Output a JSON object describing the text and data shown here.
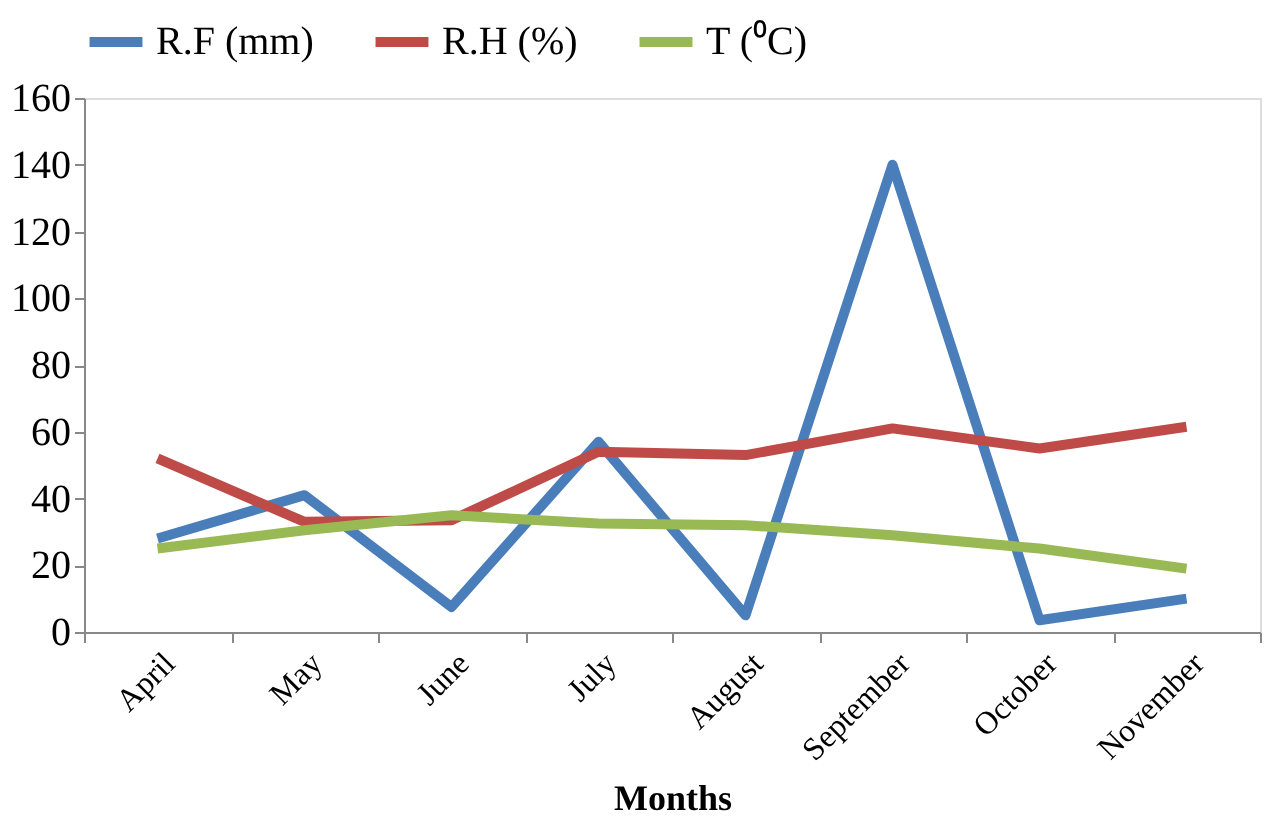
{
  "chart_data": {
    "type": "line",
    "xlabel": "Months",
    "categories": [
      "April",
      "May",
      "June",
      "July",
      "August",
      "September",
      "October",
      "November"
    ],
    "series": [
      {
        "name": "R.F (mm)",
        "color": "#4a7ebb",
        "values": [
          28,
          41,
          7.5,
          57,
          5,
          140,
          3.5,
          10
        ]
      },
      {
        "name": "R.H (%)",
        "color": "#be4b48",
        "values": [
          52,
          33,
          33.5,
          54,
          53,
          61,
          55,
          61.5
        ]
      },
      {
        "name": "T (⁰C)",
        "color": "#98b954",
        "values": [
          25,
          30.5,
          35,
          32.5,
          32,
          29,
          25,
          19
        ]
      }
    ],
    "ylim": [
      0,
      160
    ],
    "yticks": [
      0,
      20,
      40,
      60,
      80,
      100,
      120,
      140,
      160
    ],
    "grid": false,
    "legend": "top",
    "marker": "none",
    "line_style": "solid"
  }
}
